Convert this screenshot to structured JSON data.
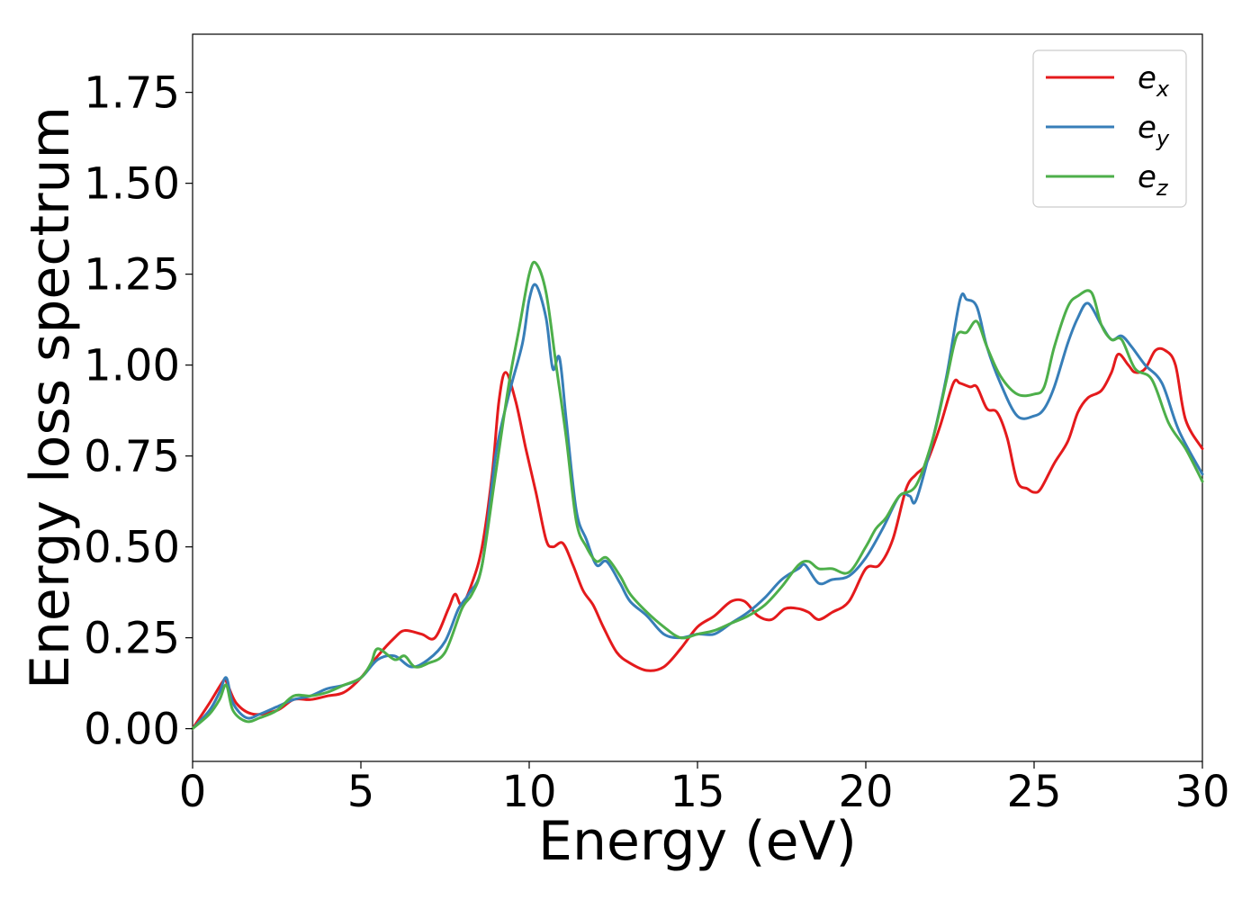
{
  "chart_data": {
    "type": "line",
    "title": "",
    "xlabel": "Energy (eV)",
    "ylabel": "Energy loss spectrum",
    "xlim": [
      0,
      30
    ],
    "ylim": [
      -0.09,
      1.91
    ],
    "xticks": [
      0,
      5,
      10,
      15,
      20,
      25,
      30
    ],
    "xtick_labels": [
      "0",
      "5",
      "10",
      "15",
      "20",
      "25",
      "30"
    ],
    "yticks": [
      0,
      0.25,
      0.5,
      0.75,
      1.0,
      1.25,
      1.5,
      1.75
    ],
    "ytick_labels": [
      "0.00",
      "0.25",
      "0.50",
      "0.75",
      "1.00",
      "1.25",
      "1.50",
      "1.75"
    ],
    "grid": false,
    "legend_position": "top-right",
    "series": [
      {
        "name": "e",
        "subscript": "x",
        "color": "#e41a1c",
        "x": [
          0,
          0.5,
          0.9,
          1.0,
          1.3,
          1.8,
          2.5,
          3.0,
          3.5,
          4.0,
          4.5,
          5.0,
          5.5,
          6.0,
          6.3,
          6.8,
          7.2,
          7.6,
          7.8,
          8.0,
          8.3,
          8.6,
          8.9,
          9.1,
          9.3,
          9.6,
          9.9,
          10.2,
          10.5,
          10.7,
          11.0,
          11.3,
          11.6,
          11.9,
          12.2,
          12.6,
          13.0,
          13.5,
          14.0,
          14.5,
          15.0,
          15.5,
          16.0,
          16.4,
          16.8,
          17.2,
          17.6,
          18.0,
          18.3,
          18.6,
          19.0,
          19.5,
          20.0,
          20.4,
          20.8,
          21.2,
          21.5,
          21.8,
          22.2,
          22.6,
          22.8,
          23.1,
          23.3,
          23.6,
          23.9,
          24.2,
          24.5,
          24.8,
          25.0,
          25.2,
          25.6,
          26.0,
          26.3,
          26.6,
          27.0,
          27.3,
          27.5,
          27.8,
          28.0,
          28.3,
          28.6,
          28.9,
          29.2,
          29.5,
          30.0
        ],
        "y": [
          0.0,
          0.07,
          0.13,
          0.13,
          0.07,
          0.04,
          0.05,
          0.08,
          0.08,
          0.09,
          0.1,
          0.14,
          0.2,
          0.25,
          0.27,
          0.26,
          0.25,
          0.33,
          0.37,
          0.34,
          0.4,
          0.5,
          0.7,
          0.9,
          0.98,
          0.9,
          0.77,
          0.65,
          0.52,
          0.5,
          0.51,
          0.45,
          0.38,
          0.34,
          0.28,
          0.21,
          0.18,
          0.16,
          0.17,
          0.22,
          0.28,
          0.31,
          0.35,
          0.35,
          0.31,
          0.3,
          0.33,
          0.33,
          0.32,
          0.3,
          0.32,
          0.35,
          0.44,
          0.45,
          0.52,
          0.66,
          0.7,
          0.73,
          0.83,
          0.95,
          0.95,
          0.94,
          0.94,
          0.88,
          0.87,
          0.8,
          0.68,
          0.66,
          0.65,
          0.66,
          0.73,
          0.79,
          0.87,
          0.91,
          0.93,
          0.98,
          1.03,
          1.0,
          0.98,
          0.99,
          1.04,
          1.04,
          1.0,
          0.85,
          0.77
        ]
      },
      {
        "name": "e",
        "subscript": "y",
        "color": "#377eb8",
        "x": [
          0,
          0.5,
          0.8,
          1.0,
          1.2,
          1.6,
          2.0,
          2.5,
          3.0,
          3.5,
          4.0,
          4.5,
          5.0,
          5.5,
          6.0,
          6.5,
          7.0,
          7.5,
          7.9,
          8.2,
          8.6,
          9.0,
          9.4,
          9.8,
          10.0,
          10.2,
          10.5,
          10.7,
          10.9,
          11.1,
          11.4,
          11.7,
          12.0,
          12.3,
          12.7,
          13.0,
          13.5,
          14.0,
          14.5,
          15.0,
          15.5,
          16.0,
          16.5,
          17.0,
          17.5,
          18.0,
          18.2,
          18.6,
          19.0,
          19.5,
          20.0,
          20.5,
          21.0,
          21.3,
          21.5,
          22.0,
          22.4,
          22.8,
          23.0,
          23.3,
          23.6,
          24.0,
          24.5,
          25.0,
          25.3,
          25.6,
          26.0,
          26.3,
          26.6,
          27.0,
          27.3,
          27.6,
          27.9,
          28.3,
          28.8,
          29.3,
          30.0
        ],
        "y": [
          0.0,
          0.05,
          0.1,
          0.14,
          0.07,
          0.03,
          0.04,
          0.06,
          0.08,
          0.09,
          0.11,
          0.12,
          0.14,
          0.19,
          0.2,
          0.17,
          0.19,
          0.24,
          0.33,
          0.37,
          0.45,
          0.75,
          0.92,
          1.06,
          1.18,
          1.22,
          1.13,
          0.99,
          1.02,
          0.85,
          0.6,
          0.52,
          0.45,
          0.46,
          0.4,
          0.35,
          0.31,
          0.26,
          0.25,
          0.26,
          0.26,
          0.29,
          0.32,
          0.36,
          0.41,
          0.44,
          0.45,
          0.4,
          0.41,
          0.42,
          0.47,
          0.55,
          0.64,
          0.64,
          0.63,
          0.8,
          0.97,
          1.18,
          1.18,
          1.16,
          1.05,
          0.95,
          0.86,
          0.86,
          0.88,
          0.94,
          1.06,
          1.13,
          1.17,
          1.11,
          1.07,
          1.08,
          1.05,
          1.0,
          0.95,
          0.82,
          0.7
        ]
      },
      {
        "name": "e",
        "subscript": "z",
        "color": "#4daf4a",
        "x": [
          0,
          0.5,
          0.8,
          1.0,
          1.2,
          1.6,
          2.0,
          2.5,
          3.0,
          3.5,
          4.0,
          4.5,
          5.0,
          5.3,
          5.5,
          6.0,
          6.3,
          6.6,
          7.0,
          7.5,
          8.0,
          8.3,
          8.6,
          9.0,
          9.4,
          9.7,
          10.0,
          10.2,
          10.5,
          10.8,
          11.1,
          11.4,
          11.7,
          12.0,
          12.3,
          12.7,
          13.0,
          13.5,
          14.0,
          14.5,
          15.0,
          15.5,
          16.0,
          16.5,
          17.0,
          17.5,
          18.0,
          18.3,
          18.6,
          19.0,
          19.5,
          20.0,
          20.3,
          20.6,
          21.0,
          21.5,
          22.0,
          22.4,
          22.7,
          23.0,
          23.3,
          23.6,
          24.0,
          24.5,
          25.0,
          25.3,
          25.6,
          26.0,
          26.3,
          26.7,
          27.0,
          27.3,
          27.6,
          28.0,
          28.5,
          29.0,
          29.5,
          30.0
        ],
        "y": [
          0.0,
          0.04,
          0.08,
          0.12,
          0.05,
          0.02,
          0.03,
          0.05,
          0.09,
          0.09,
          0.1,
          0.12,
          0.14,
          0.18,
          0.22,
          0.19,
          0.2,
          0.17,
          0.18,
          0.21,
          0.33,
          0.37,
          0.45,
          0.7,
          0.95,
          1.1,
          1.25,
          1.28,
          1.2,
          1.0,
          0.8,
          0.57,
          0.5,
          0.46,
          0.47,
          0.42,
          0.37,
          0.32,
          0.28,
          0.25,
          0.26,
          0.27,
          0.29,
          0.31,
          0.34,
          0.39,
          0.45,
          0.46,
          0.44,
          0.44,
          0.43,
          0.5,
          0.55,
          0.58,
          0.64,
          0.67,
          0.8,
          0.96,
          1.08,
          1.09,
          1.12,
          1.05,
          0.97,
          0.92,
          0.92,
          0.94,
          1.05,
          1.16,
          1.19,
          1.2,
          1.11,
          1.07,
          1.07,
          0.99,
          0.96,
          0.84,
          0.77,
          0.68
        ]
      }
    ]
  }
}
